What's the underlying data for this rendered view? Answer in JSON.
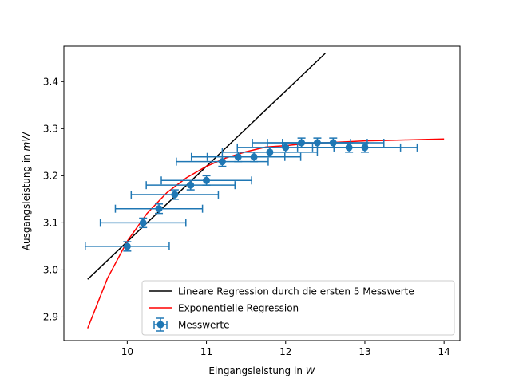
{
  "chart_data": {
    "type": "scatter",
    "title": "",
    "xlabel_prefix": "Eingangsleistung in ",
    "xlabel_unit": "W",
    "ylabel_prefix": "Ausgangsleistung in ",
    "ylabel_unit": "mW",
    "xlim": [
      9.2,
      14.2
    ],
    "ylim": [
      2.85,
      3.475
    ],
    "xticks": [
      10,
      11,
      12,
      13,
      14
    ],
    "yticks": [
      2.9,
      3.0,
      3.1,
      3.2,
      3.3,
      3.4
    ],
    "xtick_labels": [
      "10",
      "11",
      "12",
      "13",
      "14"
    ],
    "ytick_labels": [
      "2.9",
      "3.0",
      "3.1",
      "3.2",
      "3.3",
      "3.4"
    ],
    "grid": false,
    "legend_position": "lower right",
    "legend": [
      "Lineare Regression durch die ersten 5 Messwerte",
      "Exponentielle Regression",
      "Messwerte"
    ],
    "colors": {
      "linear": "#000000",
      "exponential": "#ff0000",
      "points": "#1f77b4"
    },
    "measurements": {
      "name": "Messwerte",
      "x": [
        10.0,
        10.2,
        10.4,
        10.6,
        10.8,
        11.0,
        11.2,
        11.4,
        11.6,
        11.8,
        12.0,
        12.2,
        12.4,
        12.6,
        12.8,
        13.0
      ],
      "y": [
        3.05,
        3.1,
        3.13,
        3.16,
        3.18,
        3.19,
        3.23,
        3.24,
        3.24,
        3.25,
        3.26,
        3.27,
        3.27,
        3.27,
        3.26,
        3.26
      ],
      "xerr": [
        0.53,
        0.54,
        0.55,
        0.55,
        0.56,
        0.57,
        0.58,
        0.59,
        0.59,
        0.6,
        0.61,
        0.62,
        0.63,
        0.64,
        0.65,
        0.66
      ],
      "yerr": [
        0.01,
        0.01,
        0.01,
        0.01,
        0.01,
        0.01,
        0.01,
        0.01,
        0.01,
        0.01,
        0.01,
        0.01,
        0.01,
        0.01,
        0.01,
        0.01
      ]
    },
    "linear_regression": {
      "name": "Lineare Regression durch die ersten 5 Messwerte",
      "x": [
        9.5,
        12.5
      ],
      "y": [
        2.98,
        3.46
      ]
    },
    "exponential_regression": {
      "name": "Exponentielle Regression",
      "x": [
        9.5,
        9.75,
        10.0,
        10.25,
        10.5,
        10.75,
        11.0,
        11.25,
        11.5,
        11.75,
        12.0,
        12.25,
        12.5,
        12.75,
        13.0,
        13.25,
        13.5,
        13.75,
        14.0
      ],
      "y": [
        2.876,
        2.982,
        3.061,
        3.12,
        3.164,
        3.196,
        3.22,
        3.238,
        3.251,
        3.261,
        3.264,
        3.268,
        3.27,
        3.272,
        3.274,
        3.275,
        3.276,
        3.277,
        3.278
      ]
    }
  }
}
